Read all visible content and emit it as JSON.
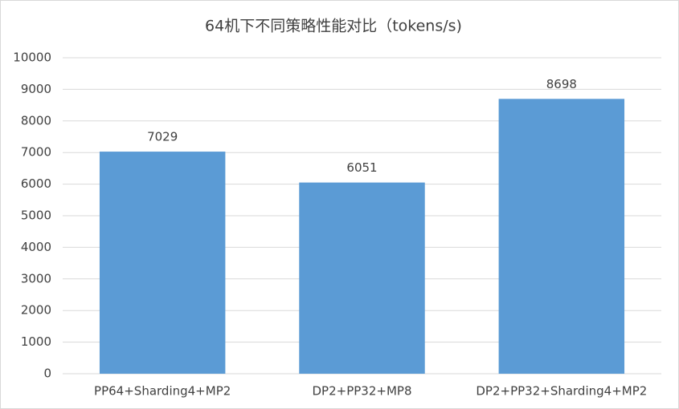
{
  "chart_data": {
    "type": "bar",
    "title": "64机下不同策略性能对比（tokens/s)",
    "categories": [
      "PP64+Sharding4+MP2",
      "DP2+PP32+MP8",
      "DP2+PP32+Sharding4+MP2"
    ],
    "values": [
      7029,
      6051,
      8698
    ],
    "color": "#5b9bd5",
    "ylim": [
      0,
      10000
    ],
    "yticks": [
      0,
      1000,
      2000,
      3000,
      4000,
      5000,
      6000,
      7000,
      8000,
      9000,
      10000
    ],
    "grid": true
  }
}
